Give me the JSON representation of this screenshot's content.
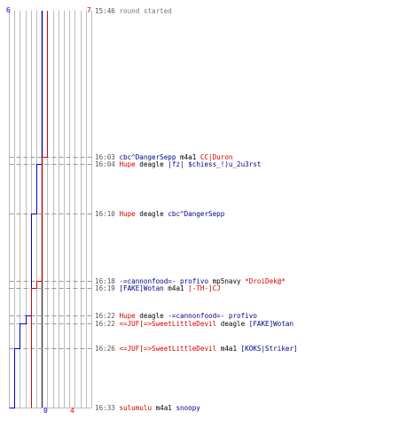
{
  "chart_data": {
    "type": "line",
    "title": "",
    "xlabel": "",
    "ylabel": "",
    "series": [
      {
        "team": "ct",
        "color": "#0000cc",
        "start": 6,
        "end": 0
      },
      {
        "team": "t",
        "color": "#dd0000",
        "start": 7,
        "end": 4
      }
    ],
    "score_labels": {
      "top_left": "6",
      "top_right": "7",
      "bottom_left": "0",
      "bottom_right": "4"
    },
    "events": [
      {
        "time": "15:46",
        "parts": [
          {
            "text": "round started",
            "team": "info"
          }
        ],
        "ct_alive": 6,
        "t_alive": 7
      },
      {
        "time": "16:03",
        "parts": [
          {
            "text": "cbc^DangerSepp",
            "team": "ct"
          },
          {
            "text": " m4a1 ",
            "team": "plain"
          },
          {
            "text": "CC|Duron",
            "team": "t"
          }
        ],
        "ct_alive": 6,
        "t_alive": 6
      },
      {
        "time": "16:04",
        "parts": [
          {
            "text": "Hupe",
            "team": "t"
          },
          {
            "text": " deagle ",
            "team": "plain"
          },
          {
            "text": "|fz| $chiess_!)u_2u3rst",
            "team": "ct"
          }
        ],
        "ct_alive": 5,
        "t_alive": 6
      },
      {
        "time": "16:10",
        "parts": [
          {
            "text": "Hupe",
            "team": "t"
          },
          {
            "text": " deagle ",
            "team": "plain"
          },
          {
            "text": "cbc^DangerSepp",
            "team": "ct"
          }
        ],
        "ct_alive": 4,
        "t_alive": 6
      },
      {
        "time": "16:18",
        "parts": [
          {
            "text": "-=cannonfood=- profivo",
            "team": "ct"
          },
          {
            "text": " mp5navy ",
            "team": "plain"
          },
          {
            "text": "*DroiDek@*",
            "team": "t"
          }
        ],
        "ct_alive": 4,
        "t_alive": 5
      },
      {
        "time": "16:19",
        "parts": [
          {
            "text": "[FAKE]Wotan",
            "team": "ct"
          },
          {
            "text": " m4a1 ",
            "team": "plain"
          },
          {
            "text": "[-TH-]CJ",
            "team": "t"
          }
        ],
        "ct_alive": 4,
        "t_alive": 4
      },
      {
        "time": "16:22",
        "parts": [
          {
            "text": "Hupe",
            "team": "t"
          },
          {
            "text": " deagle ",
            "team": "plain"
          },
          {
            "text": "-=cannonfood=- profivo",
            "team": "ct"
          }
        ],
        "ct_alive": 3,
        "t_alive": 4
      },
      {
        "time": "16:22",
        "parts": [
          {
            "text": "<=JUF[=>SweetLittleDevil",
            "team": "t"
          },
          {
            "text": " deagle ",
            "team": "plain"
          },
          {
            "text": "[FAKE]Wotan",
            "team": "ct"
          }
        ],
        "ct_alive": 2,
        "t_alive": 4
      },
      {
        "time": "16:26",
        "parts": [
          {
            "text": "<=JUF[=>SweetLittleDevil",
            "team": "t"
          },
          {
            "text": " m4a1 ",
            "team": "plain"
          },
          {
            "text": "[KOKS|Striker]",
            "team": "ct"
          }
        ],
        "ct_alive": 1,
        "t_alive": 4
      },
      {
        "time": "16:33",
        "parts": [
          {
            "text": "sulumulu",
            "team": "t"
          },
          {
            "text": " m4a1 ",
            "team": "plain"
          },
          {
            "text": "snoopy",
            "team": "ct"
          }
        ],
        "ct_alive": 0,
        "t_alive": 4
      }
    ]
  }
}
